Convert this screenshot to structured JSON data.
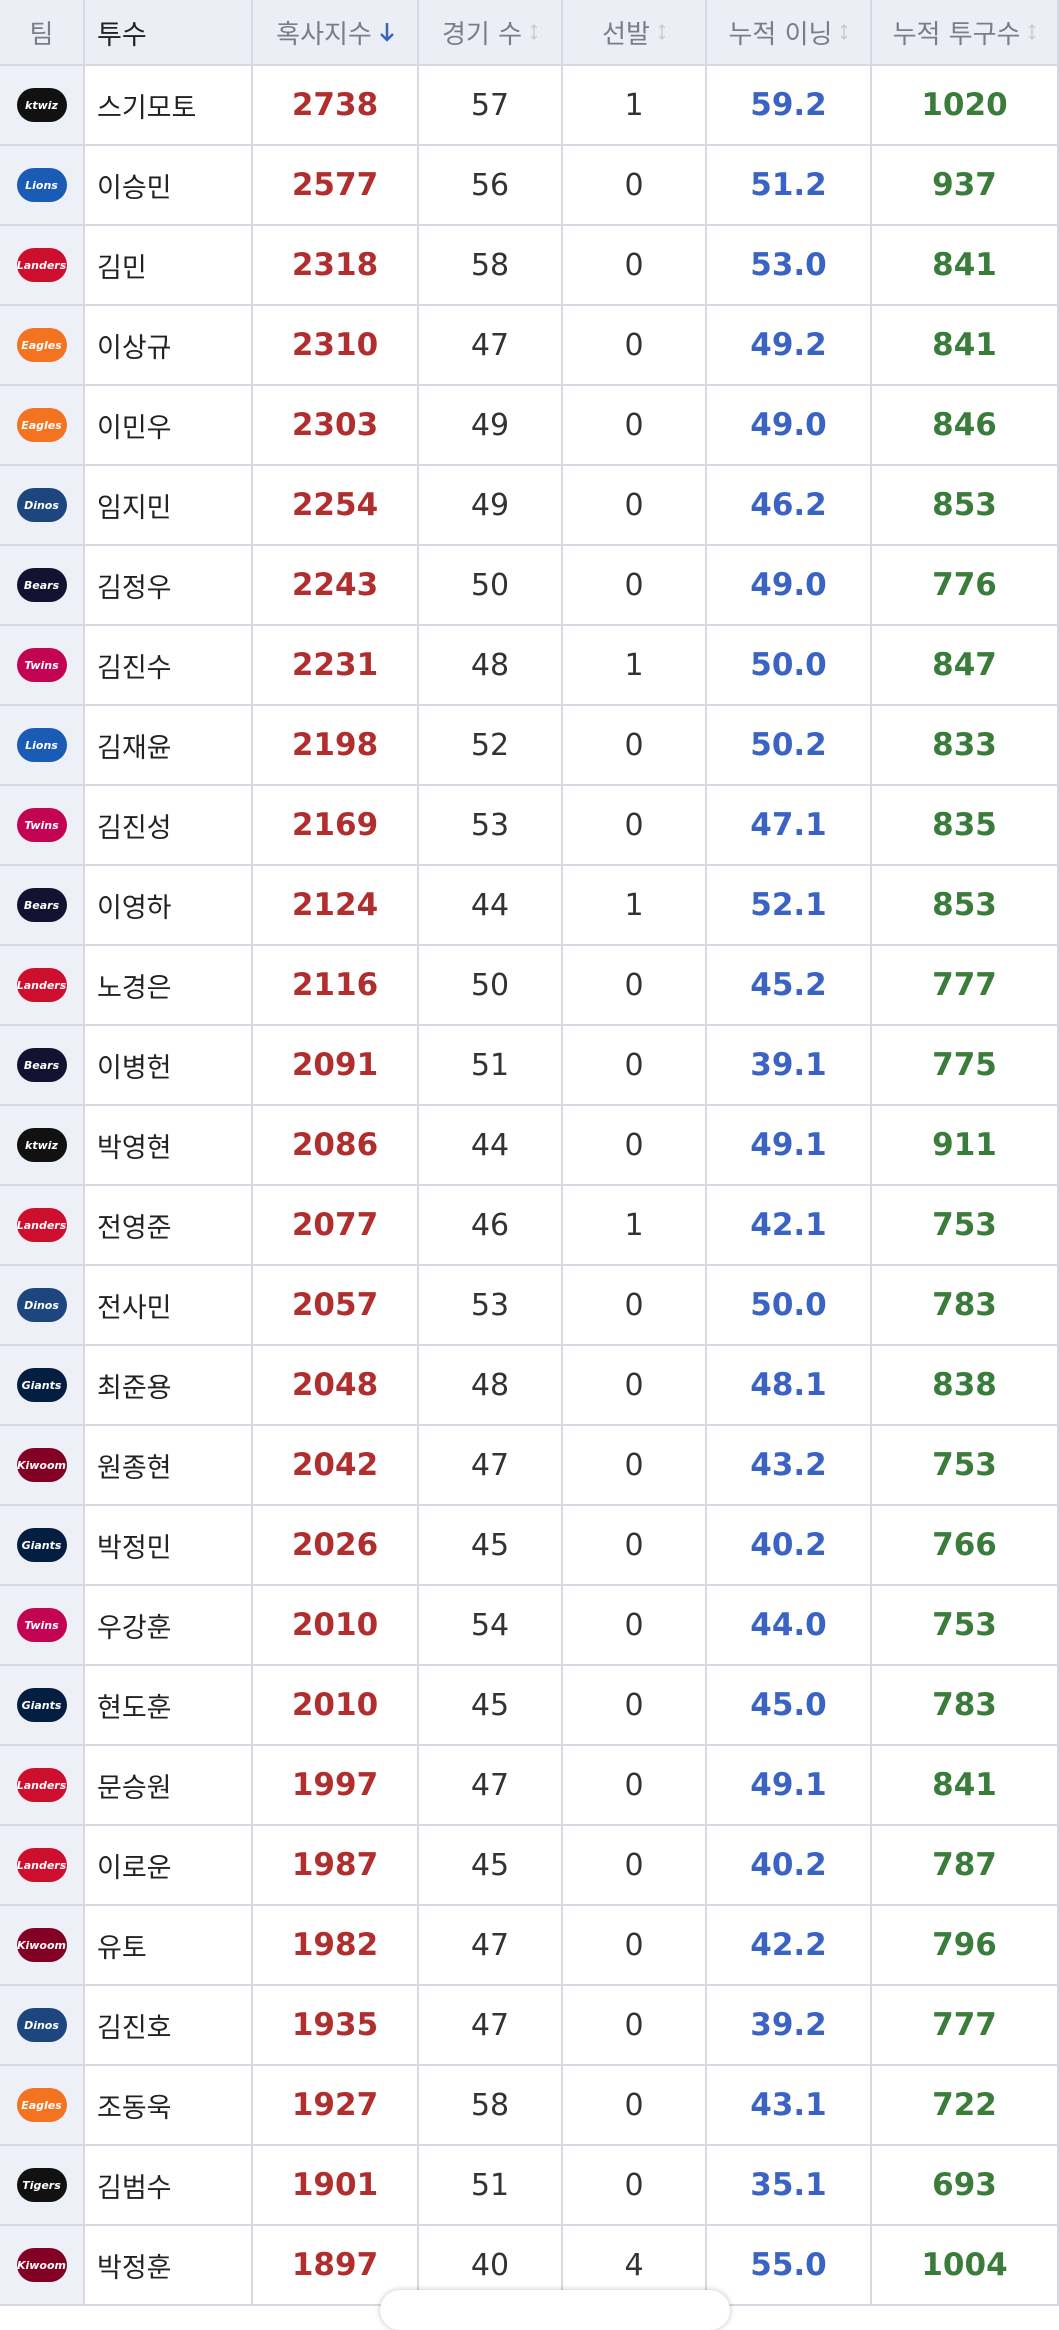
{
  "header": [
    "팀",
    "투수",
    "혹사지수",
    "경기 수",
    "선발",
    "누적 이닝",
    "누적 투구수"
  ],
  "rows": [
    [
      "ktwiz",
      "스기모토",
      2738,
      57,
      1,
      "59.2",
      1020
    ],
    [
      "Lions",
      "이승민",
      2577,
      56,
      0,
      "51.2",
      937
    ],
    [
      "Landers",
      "김민",
      2318,
      58,
      0,
      "53.0",
      841
    ],
    [
      "Eagles",
      "이상규",
      2310,
      47,
      0,
      "49.2",
      841
    ],
    [
      "Eagles",
      "이민우",
      2303,
      49,
      0,
      "49.0",
      846
    ],
    [
      "Dinos",
      "임지민",
      2254,
      49,
      0,
      "46.2",
      853
    ],
    [
      "Bears",
      "김정우",
      2243,
      50,
      0,
      "49.0",
      776
    ],
    [
      "Twins",
      "김진수",
      2231,
      48,
      1,
      "50.0",
      847
    ],
    [
      "Lions",
      "김재윤",
      2198,
      52,
      0,
      "50.2",
      833
    ],
    [
      "Twins",
      "김진성",
      2169,
      53,
      0,
      "47.1",
      835
    ],
    [
      "Bears",
      "이영하",
      2124,
      44,
      1,
      "52.1",
      853
    ],
    [
      "Landers",
      "노경은",
      2116,
      50,
      0,
      "45.2",
      777
    ],
    [
      "Bears",
      "이병헌",
      2091,
      51,
      0,
      "39.1",
      775
    ],
    [
      "ktwiz",
      "박영현",
      2086,
      44,
      0,
      "49.1",
      911
    ],
    [
      "Landers",
      "전영준",
      2077,
      46,
      1,
      "42.1",
      753
    ],
    [
      "Dinos",
      "전사민",
      2057,
      53,
      0,
      "50.0",
      783
    ],
    [
      "Giants",
      "최준용",
      2048,
      48,
      0,
      "48.1",
      838
    ],
    [
      "Kiwoom",
      "원종현",
      2042,
      47,
      0,
      "43.2",
      753
    ],
    [
      "Giants",
      "박정민",
      2026,
      45,
      0,
      "40.2",
      766
    ],
    [
      "Twins",
      "우강훈",
      2010,
      54,
      0,
      "44.0",
      753
    ],
    [
      "Giants",
      "현도훈",
      2010,
      45,
      0,
      "45.0",
      783
    ],
    [
      "Landers",
      "문승원",
      1997,
      47,
      0,
      "49.1",
      841
    ],
    [
      "Landers",
      "이로운",
      1987,
      45,
      0,
      "40.2",
      787
    ],
    [
      "Kiwoom",
      "유토",
      1982,
      47,
      0,
      "42.2",
      796
    ],
    [
      "Dinos",
      "김진호",
      1935,
      47,
      0,
      "39.2",
      777
    ],
    [
      "Eagles",
      "조동욱",
      1927,
      58,
      0,
      "43.1",
      722
    ],
    [
      "Tigers",
      "김범수",
      1901,
      51,
      0,
      "35.1",
      693
    ],
    [
      "Kiwoom",
      "박정훈",
      1897,
      40,
      4,
      "55.0",
      1004
    ]
  ]
}
